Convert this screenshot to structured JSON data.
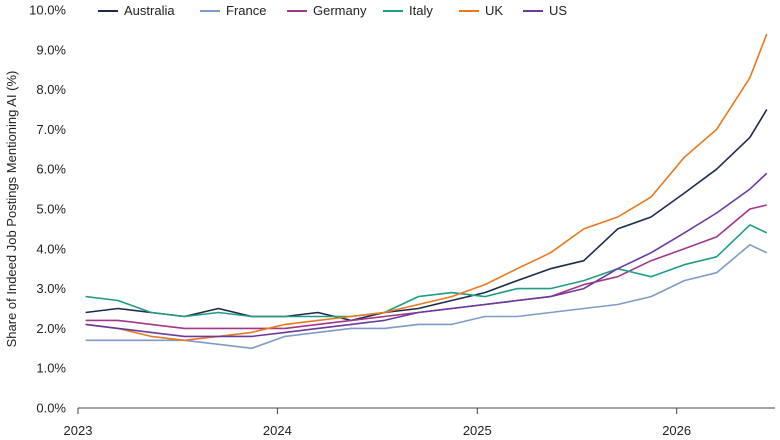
{
  "chart_data": {
    "type": "line",
    "ylabel": "Share of Indeed Job Postings Mentioning AI (%)",
    "xlabel": "",
    "ylim": [
      0,
      10
    ],
    "yticks": [
      "0.0%",
      "1.0%",
      "2.0%",
      "3.0%",
      "4.0%",
      "5.0%",
      "6.0%",
      "7.0%",
      "8.0%",
      "9.0%",
      "10.0%"
    ],
    "xlim": [
      "2023-01-01",
      "2026-06-30"
    ],
    "xticks": [
      "2023",
      "2024",
      "2025",
      "2026"
    ],
    "xtick_dates": [
      "2023-01-01",
      "2024-01-01",
      "2025-01-01",
      "2026-01-01"
    ],
    "legend_position": "top-left",
    "grid": false,
    "x": [
      "2023-01",
      "2023-03",
      "2023-05",
      "2023-07",
      "2023-09",
      "2023-11",
      "2024-01",
      "2024-03",
      "2024-05",
      "2024-07",
      "2024-09",
      "2024-11",
      "2025-01",
      "2025-03",
      "2025-05",
      "2025-07",
      "2025-09",
      "2025-11",
      "2026-01",
      "2026-03",
      "2026-05",
      "2026-06"
    ],
    "series": [
      {
        "name": "Australia",
        "color": "#1c2b4d",
        "values": [
          2.4,
          2.5,
          2.4,
          2.3,
          2.5,
          2.3,
          2.3,
          2.4,
          2.2,
          2.4,
          2.5,
          2.7,
          2.9,
          3.2,
          3.5,
          3.7,
          4.5,
          4.8,
          5.4,
          6.0,
          6.8,
          7.5
        ]
      },
      {
        "name": "France",
        "color": "#7f9cc9",
        "values": [
          1.7,
          1.7,
          1.7,
          1.7,
          1.6,
          1.5,
          1.8,
          1.9,
          2.0,
          2.0,
          2.1,
          2.1,
          2.3,
          2.3,
          2.4,
          2.5,
          2.6,
          2.8,
          3.2,
          3.4,
          4.1,
          3.9
        ]
      },
      {
        "name": "Germany",
        "color": "#a3368a",
        "values": [
          2.2,
          2.2,
          2.1,
          2.0,
          2.0,
          2.0,
          2.0,
          2.1,
          2.2,
          2.3,
          2.4,
          2.5,
          2.6,
          2.7,
          2.8,
          3.1,
          3.3,
          3.7,
          4.0,
          4.3,
          5.0,
          5.1
        ]
      },
      {
        "name": "Italy",
        "color": "#1e9e86",
        "values": [
          2.8,
          2.7,
          2.4,
          2.3,
          2.4,
          2.3,
          2.3,
          2.3,
          2.3,
          2.4,
          2.8,
          2.9,
          2.8,
          3.0,
          3.0,
          3.2,
          3.5,
          3.3,
          3.6,
          3.8,
          4.6,
          4.4
        ]
      },
      {
        "name": "UK",
        "color": "#e87a1d",
        "values": [
          2.1,
          2.0,
          1.8,
          1.7,
          1.8,
          1.9,
          2.1,
          2.2,
          2.3,
          2.4,
          2.6,
          2.8,
          3.1,
          3.5,
          3.9,
          4.5,
          4.8,
          5.3,
          6.3,
          7.0,
          8.3,
          9.4
        ]
      },
      {
        "name": "US",
        "color": "#6b3aa0",
        "values": [
          2.1,
          2.0,
          1.9,
          1.8,
          1.8,
          1.8,
          1.9,
          2.0,
          2.1,
          2.2,
          2.4,
          2.5,
          2.6,
          2.7,
          2.8,
          3.0,
          3.5,
          3.9,
          4.4,
          4.9,
          5.5,
          5.9
        ]
      }
    ]
  }
}
